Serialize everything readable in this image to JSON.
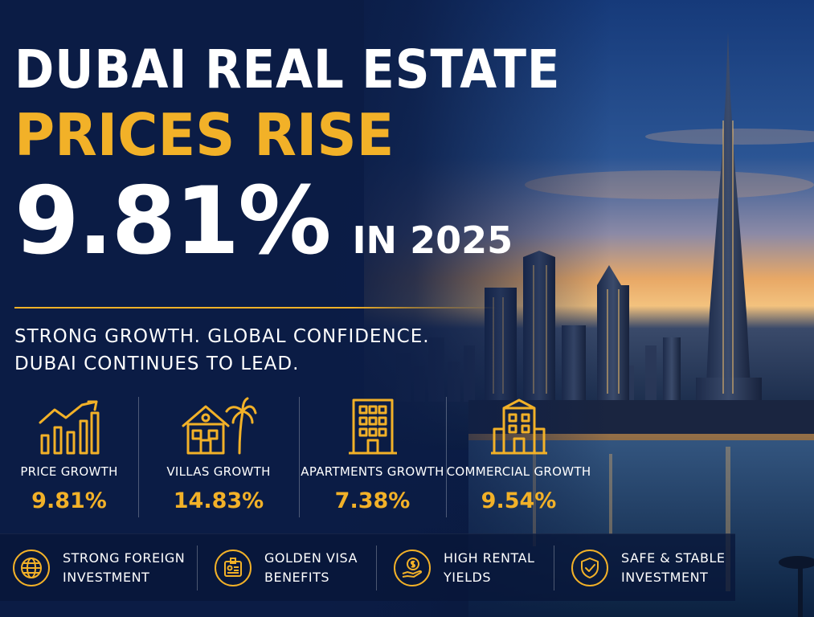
{
  "headline": {
    "line1": "DUBAI REAL ESTATE",
    "line2": "PRICES RISE",
    "big_value": "9.81%",
    "suffix": "IN 2025"
  },
  "tagline": {
    "line1": "STRONG GROWTH. GLOBAL CONFIDENCE.",
    "line2": "DUBAI CONTINUES TO LEAD."
  },
  "stats": [
    {
      "icon": "growth-chart-icon",
      "label": "PRICE GROWTH",
      "value": "9.81%"
    },
    {
      "icon": "villa-palm-icon",
      "label": "VILLAS GROWTH",
      "value": "14.83%"
    },
    {
      "icon": "apartment-building-icon",
      "label": "APARTMENTS GROWTH",
      "value": "7.38%"
    },
    {
      "icon": "commercial-building-icon",
      "label": "COMMERCIAL GROWTH",
      "value": "9.54%"
    }
  ],
  "benefits": [
    {
      "icon": "globe-pin-icon",
      "line1": "STRONG FOREIGN",
      "line2": "INVESTMENT"
    },
    {
      "icon": "id-card-icon",
      "line1": "GOLDEN VISA",
      "line2": "BENEFITS"
    },
    {
      "icon": "money-hand-icon",
      "line1": "HIGH RENTAL",
      "line2": "YIELDS"
    },
    {
      "icon": "shield-check-icon",
      "line1": "SAFE & STABLE",
      "line2": "INVESTMENT"
    }
  ],
  "colors": {
    "accent": "#f2b128",
    "background": "#0b1c45",
    "text": "#ffffff"
  }
}
